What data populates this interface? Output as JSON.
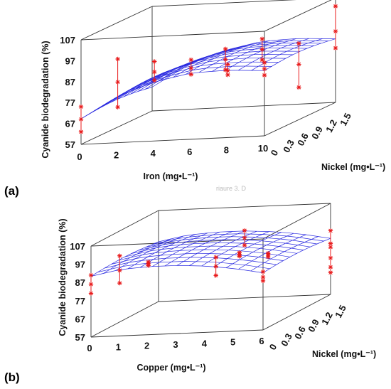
{
  "stray_text": "riaure 3. D",
  "chart_data": [
    {
      "type": "surface",
      "panel_label": "(a)",
      "zlabel": "Cyanide biodegradation (%)",
      "xlabel": "Iron (mg•L⁻¹)",
      "ylabel": "Nickel (mg•L⁻¹)",
      "xticks": [
        "0",
        "2",
        "4",
        "6",
        "8",
        "10"
      ],
      "yticks": [
        "0",
        "0.3",
        "0.6",
        "0.9",
        "1.2",
        "1.5"
      ],
      "zticks": [
        "57",
        "67",
        "77",
        "87",
        "97",
        "107"
      ],
      "xlim": [
        0,
        10
      ],
      "ylim": [
        0,
        1.5
      ],
      "zlim": [
        57,
        107
      ],
      "surface": {
        "x_at_y0": [
          70,
          80,
          86,
          89.5,
          90,
          89
        ],
        "y_curvature": 4
      },
      "errorbars": [
        {
          "x": 0,
          "y": 0,
          "z": 69,
          "zmin": 63,
          "zmax": 75
        },
        {
          "x": 2,
          "y": 0,
          "z": 86,
          "zmin": 74,
          "zmax": 97
        },
        {
          "x": 4,
          "y": 0,
          "z": 90,
          "zmin": 86,
          "zmax": 95
        },
        {
          "x": 6,
          "y": 0,
          "z": 91,
          "zmin": 88,
          "zmax": 95
        },
        {
          "x": 8,
          "y": 0,
          "z": 89,
          "zmin": 87,
          "zmax": 92
        },
        {
          "x": 4,
          "y": 1.5,
          "z": 80,
          "zmin": 75,
          "zmax": 85
        },
        {
          "x": 6,
          "y": 1.5,
          "z": 84,
          "zmin": 79,
          "zmax": 89
        },
        {
          "x": 8,
          "y": 1.5,
          "z": 76,
          "zmin": 65,
          "zmax": 86
        },
        {
          "x": 10,
          "y": 0,
          "z": 89,
          "zmin": 86,
          "zmax": 92
        },
        {
          "x": 10,
          "y": 1.5,
          "z": 91,
          "zmin": 83,
          "zmax": 103
        }
      ]
    },
    {
      "type": "surface",
      "panel_label": "(b)",
      "zlabel": "Cyanide biodegradation (%)",
      "xlabel": "Copper (mg•L⁻¹)",
      "ylabel": "Nickel (mg•L⁻¹)",
      "xticks": [
        "0",
        "1",
        "2",
        "3",
        "4",
        "5",
        "6"
      ],
      "yticks": [
        "0",
        "0.3",
        "0.6",
        "0.9",
        "1.2",
        "1.5"
      ],
      "zticks": [
        "57",
        "67",
        "77",
        "87",
        "97",
        "107"
      ],
      "xlim": [
        0,
        6
      ],
      "ylim": [
        0,
        1.5
      ],
      "zlim": [
        57,
        107
      ],
      "surface": {
        "x_at_y0": [
          91,
          94,
          95,
          95,
          94,
          92,
          89
        ],
        "y_curvature": 3
      },
      "errorbars": [
        {
          "x": 0,
          "y": 0,
          "z": 86,
          "zmin": 81,
          "zmax": 91
        },
        {
          "x": 1,
          "y": 0,
          "z": 93,
          "zmin": 86,
          "zmax": 101
        },
        {
          "x": 2,
          "y": 0,
          "z": 96,
          "zmin": 95,
          "zmax": 97
        },
        {
          "x": 2,
          "y": 1.5,
          "z": 75,
          "zmin": 70,
          "zmax": 80
        },
        {
          "x": 4,
          "y": 0.75,
          "z": 90,
          "zmin": 89,
          "zmax": 91
        },
        {
          "x": 5,
          "y": 0.75,
          "z": 89,
          "zmin": 88,
          "zmax": 90
        },
        {
          "x": 6,
          "y": 0,
          "z": 86,
          "zmin": 84,
          "zmax": 89
        },
        {
          "x": 6,
          "y": 1.5,
          "z": 77,
          "zmin": 69,
          "zmax": 85
        },
        {
          "x": 3,
          "y": 1.5,
          "z": 90,
          "zmin": 86,
          "zmax": 94
        },
        {
          "x": 6,
          "y": 1.5,
          "z": 83,
          "zmin": 72,
          "zmax": 92
        }
      ]
    }
  ]
}
